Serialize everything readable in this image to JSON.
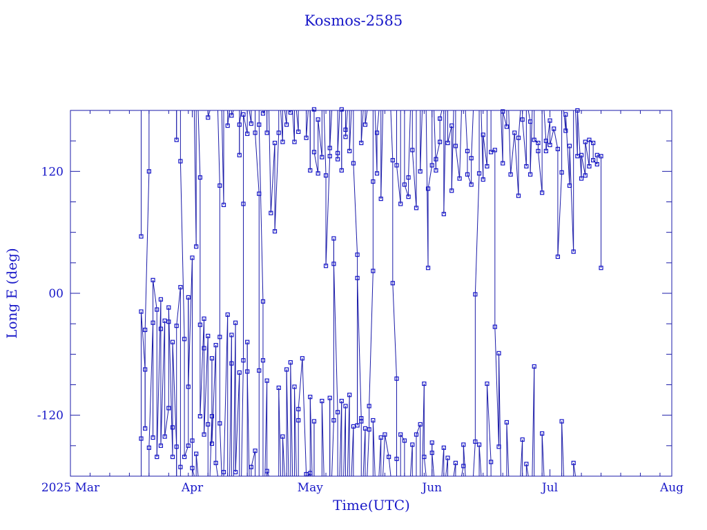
{
  "chart_data": {
    "type": "scatter",
    "title": "Kosmos-2585",
    "xlabel": "Time(UTC)",
    "ylabel": "Long E (deg)",
    "x_start": "2025-03-01",
    "x_end": "2025-08-01",
    "x_tick_labels": [
      {
        "date": "2025-03-01",
        "label": "2025 Mar"
      },
      {
        "date": "2025-04-01",
        "label": "Apr"
      },
      {
        "date": "2025-05-01",
        "label": "May"
      },
      {
        "date": "2025-06-01",
        "label": "Jun"
      },
      {
        "date": "2025-07-01",
        "label": "Jul"
      },
      {
        "date": "2025-08-01",
        "label": "Aug"
      }
    ],
    "ylim": [
      -180,
      180
    ],
    "y_tick_labels": [
      {
        "value": 120,
        "label": "120"
      },
      {
        "value": 0,
        "label": "00"
      },
      {
        "value": -120,
        "label": "-120"
      }
    ],
    "grid": false,
    "line_color": "#1a1aa8",
    "marker_color": "#1414c8",
    "points": [
      [
        "2025-03-19",
        56
      ],
      [
        "2025-03-19",
        -143
      ],
      [
        "2025-03-19",
        -18
      ],
      [
        "2025-03-20",
        -75
      ],
      [
        "2025-03-20",
        -133
      ],
      [
        "2025-03-20",
        -36
      ],
      [
        "2025-03-21",
        120
      ],
      [
        "2025-03-21",
        -152
      ],
      [
        "2025-03-22",
        -29
      ],
      [
        "2025-03-22",
        -142
      ],
      [
        "2025-03-22",
        13
      ],
      [
        "2025-03-23",
        -16
      ],
      [
        "2025-03-23",
        -161
      ],
      [
        "2025-03-24",
        -6
      ],
      [
        "2025-03-24",
        -35
      ],
      [
        "2025-03-24",
        -150
      ],
      [
        "2025-03-25",
        -27
      ],
      [
        "2025-03-25",
        -141
      ],
      [
        "2025-03-26",
        -113
      ],
      [
        "2025-03-26",
        -28
      ],
      [
        "2025-03-26",
        -14
      ],
      [
        "2025-03-27",
        -161
      ],
      [
        "2025-03-27",
        -132
      ],
      [
        "2025-03-27",
        -48
      ],
      [
        "2025-03-28",
        -151
      ],
      [
        "2025-03-28",
        151
      ],
      [
        "2025-03-28",
        -32
      ],
      [
        "2025-03-29",
        6
      ],
      [
        "2025-03-29",
        -171
      ],
      [
        "2025-03-29",
        130
      ],
      [
        "2025-03-30",
        -45
      ],
      [
        "2025-03-30",
        -161
      ],
      [
        "2025-03-31",
        -150
      ],
      [
        "2025-03-31",
        -4
      ],
      [
        "2025-03-31",
        -92
      ],
      [
        "2025-04-01",
        35
      ],
      [
        "2025-04-01",
        -145
      ],
      [
        "2025-04-01",
        -172
      ],
      [
        "2025-04-02",
        46
      ],
      [
        "2025-04-02",
        -158
      ],
      [
        "2025-04-03",
        114
      ],
      [
        "2025-04-03",
        -31
      ],
      [
        "2025-04-03",
        -121
      ],
      [
        "2025-04-04",
        -25
      ],
      [
        "2025-04-04",
        -54
      ],
      [
        "2025-04-04",
        -139
      ],
      [
        "2025-04-05",
        -42
      ],
      [
        "2025-04-05",
        -129
      ],
      [
        "2025-04-05",
        173
      ],
      [
        "2025-04-06",
        -121
      ],
      [
        "2025-04-06",
        -64
      ],
      [
        "2025-04-06",
        -148
      ],
      [
        "2025-04-07",
        -51
      ],
      [
        "2025-04-07",
        -167
      ],
      [
        "2025-04-08",
        106
      ],
      [
        "2025-04-08",
        -43
      ],
      [
        "2025-04-08",
        -128
      ],
      [
        "2025-04-09",
        87
      ],
      [
        "2025-04-09",
        -176
      ],
      [
        "2025-04-10",
        -21
      ],
      [
        "2025-04-10",
        165
      ],
      [
        "2025-04-11",
        -41
      ],
      [
        "2025-04-11",
        -69
      ],
      [
        "2025-04-11",
        175
      ],
      [
        "2025-04-12",
        -29
      ],
      [
        "2025-04-12",
        -176
      ],
      [
        "2025-04-13",
        -78
      ],
      [
        "2025-04-13",
        136
      ],
      [
        "2025-04-13",
        166
      ],
      [
        "2025-04-14",
        -66
      ],
      [
        "2025-04-14",
        88
      ],
      [
        "2025-04-14",
        176
      ],
      [
        "2025-04-15",
        157
      ],
      [
        "2025-04-15",
        -48
      ],
      [
        "2025-04-15",
        -77
      ],
      [
        "2025-04-16",
        167
      ],
      [
        "2025-04-16",
        -171
      ],
      [
        "2025-04-17",
        -155
      ],
      [
        "2025-04-17",
        158
      ],
      [
        "2025-04-18",
        98
      ],
      [
        "2025-04-18",
        -76
      ],
      [
        "2025-04-18",
        166
      ],
      [
        "2025-04-19",
        -8
      ],
      [
        "2025-04-19",
        -66
      ],
      [
        "2025-04-19",
        177
      ],
      [
        "2025-04-20",
        -86
      ],
      [
        "2025-04-20",
        158
      ],
      [
        "2025-04-20",
        -175
      ],
      [
        "2025-04-21",
        79
      ],
      [
        "2025-04-22",
        148
      ],
      [
        "2025-04-22",
        61
      ],
      [
        "2025-04-23",
        158
      ],
      [
        "2025-04-23",
        -93
      ],
      [
        "2025-04-24",
        149
      ],
      [
        "2025-04-24",
        -141
      ],
      [
        "2025-04-25",
        166
      ],
      [
        "2025-04-25",
        -75
      ],
      [
        "2025-04-26",
        178
      ],
      [
        "2025-04-26",
        -68
      ],
      [
        "2025-04-27",
        149
      ],
      [
        "2025-04-27",
        -92
      ],
      [
        "2025-04-28",
        159
      ],
      [
        "2025-04-28",
        -125
      ],
      [
        "2025-04-28",
        -114
      ],
      [
        "2025-04-29",
        -64
      ],
      [
        "2025-04-30",
        -178
      ],
      [
        "2025-04-30",
        153
      ],
      [
        "2025-05-01",
        -177
      ],
      [
        "2025-05-01",
        121
      ],
      [
        "2025-05-01",
        -102
      ],
      [
        "2025-05-02",
        181
      ],
      [
        "2025-05-02",
        -126
      ],
      [
        "2025-05-02",
        139
      ],
      [
        "2025-05-03",
        118
      ],
      [
        "2025-05-03",
        171
      ],
      [
        "2025-05-04",
        134
      ],
      [
        "2025-05-04",
        -106
      ],
      [
        "2025-05-05",
        116
      ],
      [
        "2025-05-05",
        27
      ],
      [
        "2025-05-06",
        135
      ],
      [
        "2025-05-06",
        -103
      ],
      [
        "2025-05-06",
        143
      ],
      [
        "2025-05-07",
        -125
      ],
      [
        "2025-05-07",
        54
      ],
      [
        "2025-05-07",
        29
      ],
      [
        "2025-05-08",
        -117
      ],
      [
        "2025-05-08",
        132
      ],
      [
        "2025-05-08",
        138
      ],
      [
        "2025-05-09",
        -106
      ],
      [
        "2025-05-09",
        121
      ],
      [
        "2025-05-09",
        181
      ],
      [
        "2025-05-10",
        -111
      ],
      [
        "2025-05-10",
        161
      ],
      [
        "2025-05-10",
        154
      ],
      [
        "2025-05-11",
        -100
      ],
      [
        "2025-05-11",
        140
      ],
      [
        "2025-05-12",
        -131
      ],
      [
        "2025-05-12",
        128
      ],
      [
        "2025-05-13",
        38
      ],
      [
        "2025-05-13",
        -130
      ],
      [
        "2025-05-13",
        15
      ],
      [
        "2025-05-14",
        -123
      ],
      [
        "2025-05-14",
        -126
      ],
      [
        "2025-05-14",
        148
      ],
      [
        "2025-05-15",
        -133
      ],
      [
        "2025-05-15",
        166
      ],
      [
        "2025-05-16",
        -134
      ],
      [
        "2025-05-16",
        -111
      ],
      [
        "2025-05-17",
        22
      ],
      [
        "2025-05-17",
        110
      ],
      [
        "2025-05-17",
        -125
      ],
      [
        "2025-05-18",
        118
      ],
      [
        "2025-05-18",
        158
      ],
      [
        "2025-05-19",
        -142
      ],
      [
        "2025-05-19",
        93
      ],
      [
        "2025-05-20",
        -139
      ],
      [
        "2025-05-21",
        -161
      ],
      [
        "2025-05-22",
        131
      ],
      [
        "2025-05-22",
        10
      ],
      [
        "2025-05-23",
        -84
      ],
      [
        "2025-05-23",
        -163
      ],
      [
        "2025-05-23",
        126
      ],
      [
        "2025-05-24",
        88
      ],
      [
        "2025-05-24",
        -139
      ],
      [
        "2025-05-25",
        -145
      ],
      [
        "2025-05-25",
        107
      ],
      [
        "2025-05-26",
        95
      ],
      [
        "2025-05-26",
        114
      ],
      [
        "2025-05-27",
        -149
      ],
      [
        "2025-05-27",
        141
      ],
      [
        "2025-05-28",
        84
      ],
      [
        "2025-05-28",
        -139
      ],
      [
        "2025-05-29",
        -129
      ],
      [
        "2025-05-29",
        120
      ],
      [
        "2025-05-30",
        -89
      ],
      [
        "2025-05-30",
        -161
      ],
      [
        "2025-05-31",
        25
      ],
      [
        "2025-05-31",
        103
      ],
      [
        "2025-06-01",
        126
      ],
      [
        "2025-06-01",
        -147
      ],
      [
        "2025-06-01",
        -157
      ],
      [
        "2025-06-02",
        121
      ],
      [
        "2025-06-02",
        132
      ],
      [
        "2025-06-03",
        149
      ],
      [
        "2025-06-03",
        172
      ],
      [
        "2025-06-04",
        -152
      ],
      [
        "2025-06-04",
        78
      ],
      [
        "2025-06-05",
        -162
      ],
      [
        "2025-06-05",
        148
      ],
      [
        "2025-06-06",
        165
      ],
      [
        "2025-06-06",
        101
      ],
      [
        "2025-06-07",
        -167
      ],
      [
        "2025-06-07",
        145
      ],
      [
        "2025-06-08",
        113
      ],
      [
        "2025-06-09",
        -170
      ],
      [
        "2025-06-09",
        -149
      ],
      [
        "2025-06-10",
        140
      ],
      [
        "2025-06-10",
        117
      ],
      [
        "2025-06-11",
        107
      ],
      [
        "2025-06-11",
        133
      ],
      [
        "2025-06-12",
        -146
      ],
      [
        "2025-06-12",
        -1
      ],
      [
        "2025-06-13",
        118
      ],
      [
        "2025-06-13",
        -149
      ],
      [
        "2025-06-14",
        112
      ],
      [
        "2025-06-14",
        156
      ],
      [
        "2025-06-15",
        125
      ],
      [
        "2025-06-15",
        -89
      ],
      [
        "2025-06-16",
        -166
      ],
      [
        "2025-06-16",
        139
      ],
      [
        "2025-06-17",
        141
      ],
      [
        "2025-06-17",
        -33
      ],
      [
        "2025-06-18",
        -151
      ],
      [
        "2025-06-18",
        -59
      ],
      [
        "2025-06-19",
        128
      ],
      [
        "2025-06-19",
        179
      ],
      [
        "2025-06-20",
        164
      ],
      [
        "2025-06-20",
        -127
      ],
      [
        "2025-06-21",
        117
      ],
      [
        "2025-06-22",
        158
      ],
      [
        "2025-06-23",
        96
      ],
      [
        "2025-06-23",
        153
      ],
      [
        "2025-06-24",
        -144
      ],
      [
        "2025-06-24",
        171
      ],
      [
        "2025-06-25",
        125
      ],
      [
        "2025-06-25",
        -168
      ],
      [
        "2025-06-26",
        169
      ],
      [
        "2025-06-26",
        117
      ],
      [
        "2025-06-27",
        -72
      ],
      [
        "2025-06-27",
        151
      ],
      [
        "2025-06-28",
        148
      ],
      [
        "2025-06-28",
        140
      ],
      [
        "2025-06-29",
        99
      ],
      [
        "2025-06-29",
        -138
      ],
      [
        "2025-06-30",
        150
      ],
      [
        "2025-06-30",
        140
      ],
      [
        "2025-07-01",
        170
      ],
      [
        "2025-07-01",
        146
      ],
      [
        "2025-07-02",
        162
      ],
      [
        "2025-07-03",
        142
      ],
      [
        "2025-07-03",
        36
      ],
      [
        "2025-07-04",
        119
      ],
      [
        "2025-07-04",
        -126
      ],
      [
        "2025-07-05",
        160
      ],
      [
        "2025-07-05",
        176
      ],
      [
        "2025-07-06",
        106
      ],
      [
        "2025-07-06",
        145
      ],
      [
        "2025-07-07",
        41
      ],
      [
        "2025-07-07",
        -167
      ],
      [
        "2025-07-08",
        135
      ],
      [
        "2025-07-08",
        180
      ],
      [
        "2025-07-09",
        113
      ],
      [
        "2025-07-09",
        136
      ],
      [
        "2025-07-10",
        116
      ],
      [
        "2025-07-10",
        149
      ],
      [
        "2025-07-11",
        125
      ],
      [
        "2025-07-11",
        151
      ],
      [
        "2025-07-12",
        148
      ],
      [
        "2025-07-12",
        131
      ],
      [
        "2025-07-13",
        127
      ],
      [
        "2025-07-13",
        136
      ],
      [
        "2025-07-14",
        135
      ],
      [
        "2025-07-14",
        25
      ]
    ]
  }
}
